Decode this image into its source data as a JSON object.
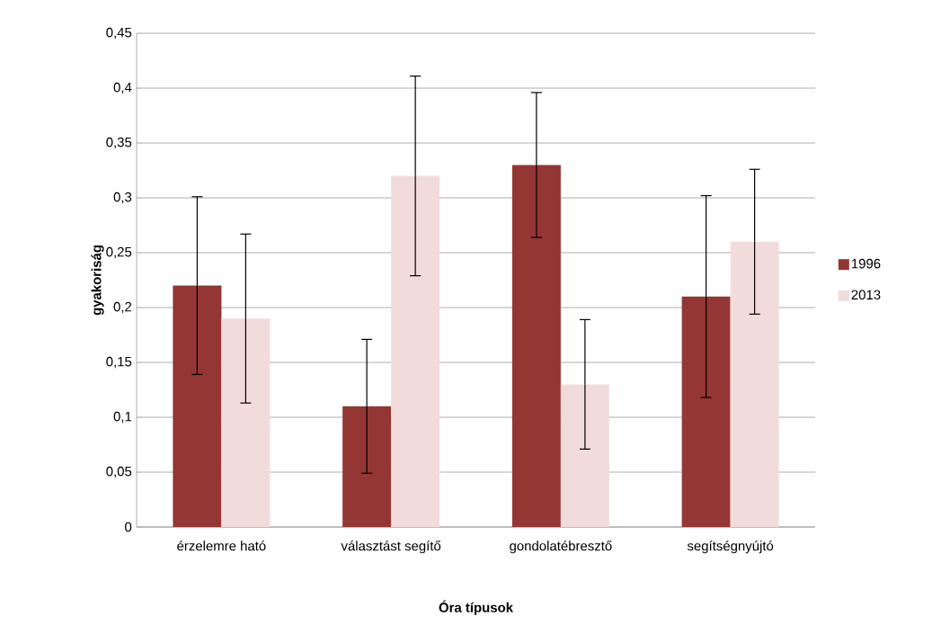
{
  "chart_data": {
    "type": "bar",
    "xlabel": "Óra típusok",
    "ylabel": "gyakoriság",
    "categories": [
      "érzelemre ható",
      "választást segítő",
      "gondolatébresztő",
      "segítségnyújtó"
    ],
    "series": [
      {
        "name": "1996",
        "color": "#943634",
        "values": [
          0.22,
          0.11,
          0.33,
          0.21
        ],
        "errors": [
          0.081,
          0.061,
          0.066,
          0.092
        ]
      },
      {
        "name": "2013",
        "color": "#f2dcdb",
        "values": [
          0.19,
          0.32,
          0.13,
          0.26
        ],
        "errors": [
          0.077,
          0.091,
          0.059,
          0.066
        ]
      }
    ],
    "ylim": [
      0,
      0.45
    ],
    "yticks": [
      0,
      {
        "value": 0.05,
        "label": "0,05"
      },
      {
        "value": 0.1,
        "label": "0,1"
      },
      {
        "value": 0.15,
        "label": "0,15"
      },
      {
        "value": 0.2,
        "label": "0,2"
      },
      {
        "value": 0.25,
        "label": "0,25"
      },
      {
        "value": 0.3,
        "label": "0,3"
      },
      {
        "value": 0.35,
        "label": "0,35"
      },
      {
        "value": 0.4,
        "label": "0,4"
      },
      {
        "value": 0.45,
        "label": "0,45"
      }
    ],
    "grid": "y",
    "legend": "right"
  }
}
